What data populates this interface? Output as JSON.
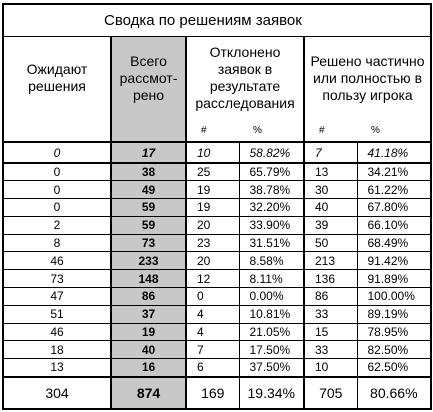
{
  "title": "Сводка по решениям заявок",
  "headers": {
    "pending": "Ожидают решения",
    "total_reviewed": "Всего рассмот-рено",
    "rejected": "Отклонено заявок в результате расследования",
    "resolved": "Решено частично или полностью в пользу игрока",
    "sub_num": "#",
    "sub_pct": "%"
  },
  "summary": {
    "pending": "0",
    "total": "17",
    "rej_n": "10",
    "rej_p": "58.82%",
    "res_n": "7",
    "res_p": "41.18%"
  },
  "rows": [
    {
      "pending": "0",
      "total": "38",
      "rej_n": "25",
      "rej_p": "65.79%",
      "res_n": "13",
      "res_p": "34.21%"
    },
    {
      "pending": "0",
      "total": "49",
      "rej_n": "19",
      "rej_p": "38.78%",
      "res_n": "30",
      "res_p": "61.22%"
    },
    {
      "pending": "0",
      "total": "59",
      "rej_n": "19",
      "rej_p": "32.20%",
      "res_n": "40",
      "res_p": "67.80%"
    },
    {
      "pending": "2",
      "total": "59",
      "rej_n": "20",
      "rej_p": "33.90%",
      "res_n": "39",
      "res_p": "66.10%"
    },
    {
      "pending": "8",
      "total": "73",
      "rej_n": "23",
      "rej_p": "31.51%",
      "res_n": "50",
      "res_p": "68.49%"
    },
    {
      "pending": "46",
      "total": "233",
      "rej_n": "20",
      "rej_p": "8.58%",
      "res_n": "213",
      "res_p": "91.42%"
    },
    {
      "pending": "73",
      "total": "148",
      "rej_n": "12",
      "rej_p": "8.11%",
      "res_n": "136",
      "res_p": "91.89%"
    },
    {
      "pending": "47",
      "total": "86",
      "rej_n": "0",
      "rej_p": "0.00%",
      "res_n": "86",
      "res_p": "100.00%"
    },
    {
      "pending": "51",
      "total": "37",
      "rej_n": "4",
      "rej_p": "10.81%",
      "res_n": "33",
      "res_p": "89.19%"
    },
    {
      "pending": "46",
      "total": "19",
      "rej_n": "4",
      "rej_p": "21.05%",
      "res_n": "15",
      "res_p": "78.95%"
    },
    {
      "pending": "18",
      "total": "40",
      "rej_n": "7",
      "rej_p": "17.50%",
      "res_n": "33",
      "res_p": "82.50%"
    },
    {
      "pending": "13",
      "total": "16",
      "rej_n": "6",
      "rej_p": "37.50%",
      "res_n": "10",
      "res_p": "62.50%"
    }
  ],
  "totals": {
    "pending": "304",
    "total": "874",
    "rej_n": "169",
    "rej_p": "19.34%",
    "res_n": "705",
    "res_p": "80.66%"
  }
}
